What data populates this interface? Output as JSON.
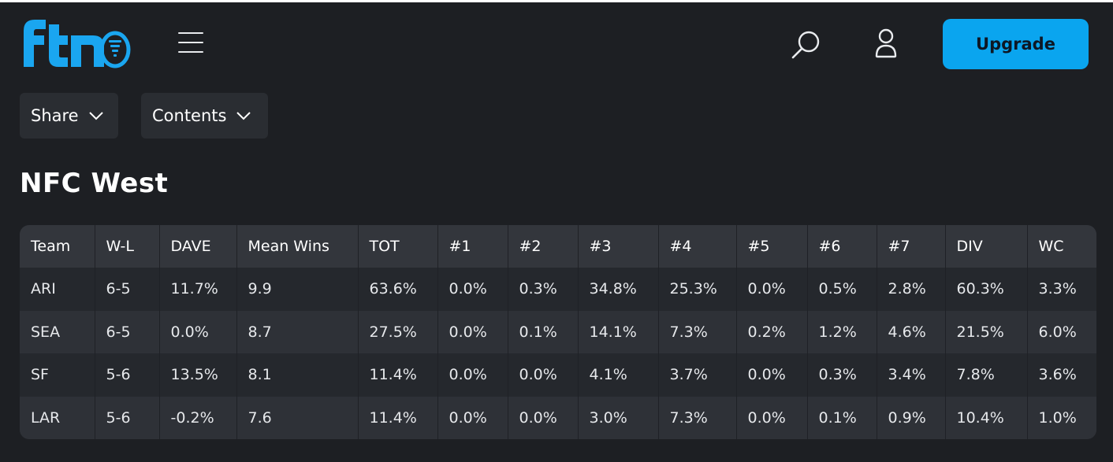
{
  "header": {
    "logo_text": "FTN",
    "upgrade_label": "Upgrade"
  },
  "toolbar": {
    "share_label": "Share",
    "contents_label": "Contents"
  },
  "section": {
    "title": "NFC West"
  },
  "table": {
    "columns": [
      "Team",
      "W-L",
      "DAVE",
      "Mean Wins",
      "TOT",
      "#1",
      "#2",
      "#3",
      "#4",
      "#5",
      "#6",
      "#7",
      "DIV",
      "WC"
    ],
    "rows": [
      [
        "ARI",
        "6-5",
        "11.7%",
        "9.9",
        "63.6%",
        "0.0%",
        "0.3%",
        "34.8%",
        "25.3%",
        "0.0%",
        "0.5%",
        "2.8%",
        "60.3%",
        "3.3%"
      ],
      [
        "SEA",
        "6-5",
        "0.0%",
        "8.7",
        "27.5%",
        "0.0%",
        "0.1%",
        "14.1%",
        "7.3%",
        "0.2%",
        "1.2%",
        "4.6%",
        "21.5%",
        "6.0%"
      ],
      [
        "SF",
        "5-6",
        "13.5%",
        "8.1",
        "11.4%",
        "0.0%",
        "0.0%",
        "4.1%",
        "3.7%",
        "0.0%",
        "0.3%",
        "3.4%",
        "7.8%",
        "3.6%"
      ],
      [
        "LAR",
        "5-6",
        "-0.2%",
        "7.6",
        "11.4%",
        "0.0%",
        "0.0%",
        "3.0%",
        "7.3%",
        "0.0%",
        "0.1%",
        "0.9%",
        "10.4%",
        "1.0%"
      ]
    ]
  },
  "colors": {
    "background": "#1d1f23",
    "accent": "#0aa5ef",
    "logo": "#1aa6f0"
  },
  "icons": {
    "menu": "hamburger-icon",
    "search": "search-icon",
    "account": "user-icon",
    "dropdown": "chevron-down-icon"
  }
}
